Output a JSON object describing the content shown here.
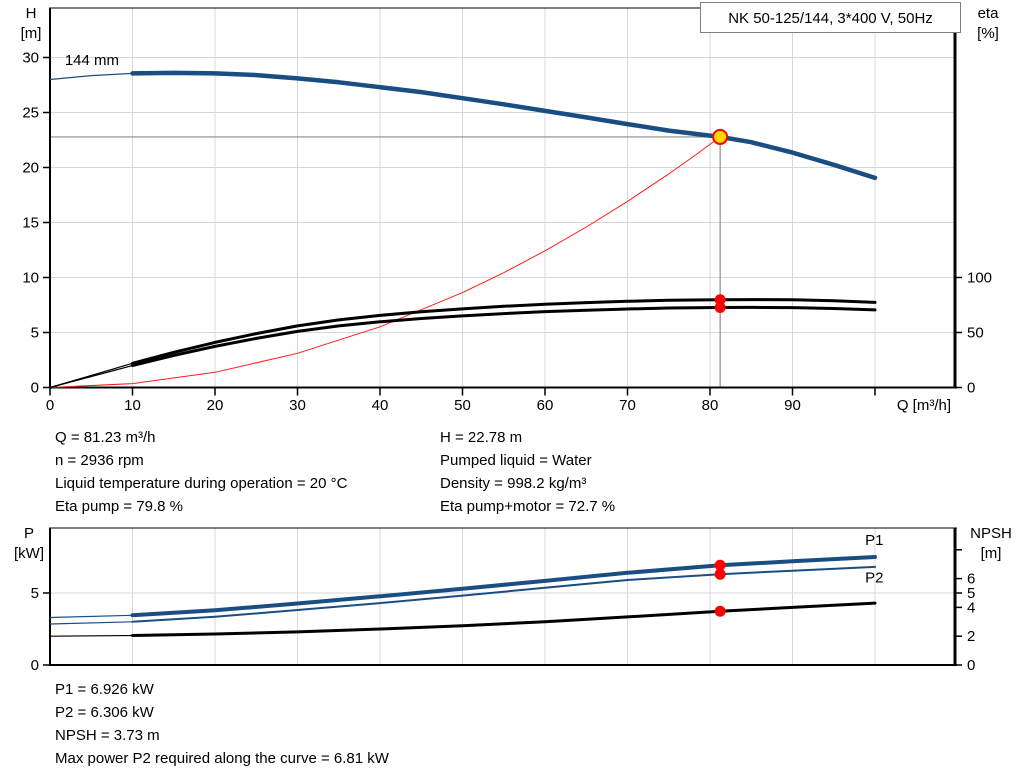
{
  "colors": {
    "curve_blue": "#1A4E82",
    "curve_black": "#000000",
    "system_red": "#FF1A1A",
    "dot_red": "#FF0000",
    "op_yellow": "#FFD800",
    "grid": "#D8D8D8",
    "crosshair": "#8C8C8C",
    "frame": "#000000",
    "box_border": "#7F7F7F",
    "label_blue": "#1A4E82"
  },
  "operating_point": {
    "q": 81.23,
    "h": 22.78,
    "eta_pump": 79.8,
    "eta_pump_motor": 72.7,
    "p1": 6.926,
    "p2": 6.306,
    "npsh": 3.73
  },
  "chart_data": [
    {
      "type": "line",
      "title": "NK 50-125/144, 3*400 V, 50Hz",
      "xlabel": "Q [m³/h]",
      "xlim": [
        0,
        109.7
      ],
      "x_ticks": [
        0,
        10,
        20,
        30,
        40,
        50,
        60,
        70,
        80,
        90,
        100
      ],
      "x_tick_labels": [
        "0",
        "10",
        "20",
        "30",
        "40",
        "50",
        "60",
        "70",
        "80",
        "90",
        ""
      ],
      "grid": true,
      "curve_label": {
        "text": "144 mm",
        "x": 1.8,
        "y": 29.3
      },
      "left_axis": {
        "title_lines": [
          "H",
          "[m]"
        ],
        "ticks": [
          0,
          5,
          10,
          15,
          20,
          25,
          30
        ],
        "lim": [
          0,
          34.5
        ]
      },
      "right_axis": {
        "title_lines": [
          "eta",
          "[%]"
        ],
        "ticks": [
          0,
          50,
          100
        ],
        "tick_labels": [
          "0",
          "50",
          "100"
        ],
        "lim": [
          0,
          345
        ]
      },
      "crosshair": {
        "x": 81.23,
        "y": 22.78
      },
      "series": [
        {
          "name": "system-curve",
          "axis": "left",
          "color_key": "system_red",
          "width": 1,
          "x": [
            0,
            10,
            20,
            30,
            40,
            50,
            55,
            60,
            65,
            70,
            75,
            78,
            81.23
          ],
          "y": [
            0,
            0.35,
            1.38,
            3.11,
            5.52,
            8.63,
            10.44,
            12.43,
            14.59,
            16.92,
            19.42,
            21.0,
            22.78
          ]
        },
        {
          "name": "eta-pump-motor",
          "axis": "right",
          "color_key": "curve_black",
          "width": 3,
          "thin_until": 10,
          "x": [
            0,
            5,
            10,
            15,
            20,
            25,
            30,
            35,
            40,
            45,
            50,
            55,
            60,
            65,
            70,
            75,
            81.23,
            85,
            90,
            95,
            100
          ],
          "y": [
            0,
            10,
            20,
            29.2,
            37.4,
            44.6,
            51,
            56,
            59.7,
            62.7,
            65.1,
            67.2,
            69,
            70.3,
            71.4,
            72.3,
            72.7,
            72.8,
            72.6,
            71.8,
            70.5
          ]
        },
        {
          "name": "eta-pump",
          "axis": "right",
          "color_key": "curve_black",
          "width": 3,
          "thin_until": 10,
          "x": [
            0,
            5,
            10,
            15,
            20,
            25,
            30,
            35,
            40,
            45,
            50,
            55,
            60,
            65,
            70,
            75,
            81.23,
            85,
            90,
            95,
            100
          ],
          "y": [
            0,
            11,
            22,
            32,
            41,
            49,
            56,
            61.5,
            65.5,
            68.8,
            71.5,
            73.8,
            75.7,
            77.2,
            78.4,
            79.3,
            79.8,
            79.9,
            79.7,
            78.8,
            77.4
          ]
        },
        {
          "name": "head-144mm",
          "axis": "left",
          "color_key": "curve_blue",
          "width": 4.5,
          "thin_until": 10,
          "x": [
            0,
            5,
            10,
            15,
            20,
            25,
            30,
            35,
            40,
            45,
            50,
            55,
            60,
            65,
            70,
            75,
            81.23,
            85,
            90,
            95,
            100
          ],
          "y": [
            28.0,
            28.35,
            28.55,
            28.6,
            28.55,
            28.4,
            28.1,
            27.75,
            27.3,
            26.85,
            26.3,
            25.75,
            25.15,
            24.55,
            23.95,
            23.35,
            22.78,
            22.3,
            21.35,
            20.25,
            19.05
          ]
        }
      ],
      "markers": [
        {
          "name": "eta-pump-point",
          "axis": "right",
          "x": 81.23,
          "y": 79.8,
          "r": 5.5,
          "fill_key": "dot_red"
        },
        {
          "name": "eta-pump-motor-point",
          "axis": "right",
          "x": 81.23,
          "y": 72.7,
          "r": 5.5,
          "fill_key": "dot_red"
        },
        {
          "name": "duty-point",
          "axis": "left",
          "x": 81.23,
          "y": 22.78,
          "r": 7,
          "fill_key": "op_yellow",
          "stroke_key": "dot_red",
          "interactable": true
        }
      ]
    },
    {
      "type": "line",
      "title": "",
      "xlabel": "",
      "xlim": [
        0,
        109.7
      ],
      "x_ticks": [
        0,
        10,
        20,
        30,
        40,
        50,
        60,
        70,
        80,
        90,
        100
      ],
      "grid": true,
      "left_axis": {
        "title_lines": [
          "P",
          "[kW]"
        ],
        "ticks": [
          0,
          5
        ],
        "lim": [
          0,
          9.5
        ]
      },
      "right_axis": {
        "title_lines": [
          "NPSH",
          "[m]"
        ],
        "ticks": [
          0,
          2,
          4,
          5,
          6,
          8
        ],
        "tick_labels": [
          "0",
          "2",
          "4",
          "5",
          "6",
          ""
        ],
        "lim": [
          0,
          9.5
        ]
      },
      "series": [
        {
          "name": "npsh",
          "axis": "right",
          "color_key": "curve_black",
          "width": 3,
          "thin_until": 10,
          "x": [
            0,
            10,
            20,
            30,
            40,
            50,
            60,
            70,
            81.23,
            90,
            100
          ],
          "y": [
            2.0,
            2.05,
            2.15,
            2.3,
            2.5,
            2.73,
            3.0,
            3.34,
            3.73,
            4.0,
            4.3
          ]
        },
        {
          "name": "p2",
          "axis": "left",
          "color_key": "curve_blue",
          "width": 2,
          "thin_until": 10,
          "x": [
            0,
            10,
            20,
            30,
            40,
            50,
            60,
            70,
            81.23,
            90,
            100
          ],
          "y": [
            2.85,
            3.0,
            3.35,
            3.82,
            4.3,
            4.82,
            5.36,
            5.9,
            6.306,
            6.55,
            6.81
          ]
        },
        {
          "name": "p1",
          "axis": "left",
          "color_key": "curve_blue",
          "width": 4,
          "thin_until": 10,
          "x": [
            0,
            10,
            20,
            30,
            40,
            50,
            60,
            70,
            81.23,
            90,
            100
          ],
          "y": [
            3.3,
            3.45,
            3.8,
            4.27,
            4.77,
            5.3,
            5.84,
            6.4,
            6.926,
            7.2,
            7.5
          ]
        }
      ],
      "markers": [
        {
          "name": "p1-point",
          "axis": "left",
          "x": 81.23,
          "y": 6.926,
          "r": 5.5,
          "fill_key": "dot_red"
        },
        {
          "name": "p2-point",
          "axis": "left",
          "x": 81.23,
          "y": 6.306,
          "r": 5.5,
          "fill_key": "dot_red"
        },
        {
          "name": "npsh-point",
          "axis": "right",
          "x": 81.23,
          "y": 3.73,
          "r": 5.5,
          "fill_key": "dot_red"
        }
      ],
      "series_labels": [
        {
          "text": "P1",
          "x": 98.8,
          "y": 8.35,
          "color_key": "label_blue"
        },
        {
          "text": "P2",
          "x": 98.8,
          "y": 5.72,
          "color_key": "label_blue"
        }
      ]
    }
  ],
  "info_top": {
    "left": [
      "Q = 81.23 m³/h",
      "n = 2936 rpm",
      "Liquid temperature during operation = 20 °C",
      "Eta pump = 79.8 %"
    ],
    "right": [
      "H = 22.78 m",
      "Pumped liquid = Water",
      "Density = 998.2 kg/m³",
      "Eta pump+motor = 72.7 %"
    ]
  },
  "info_bottom": [
    "P1 = 6.926 kW",
    "P2 = 6.306 kW",
    "NPSH = 3.73 m",
    "Max power P2 required along the curve = 6.81 kW"
  ]
}
